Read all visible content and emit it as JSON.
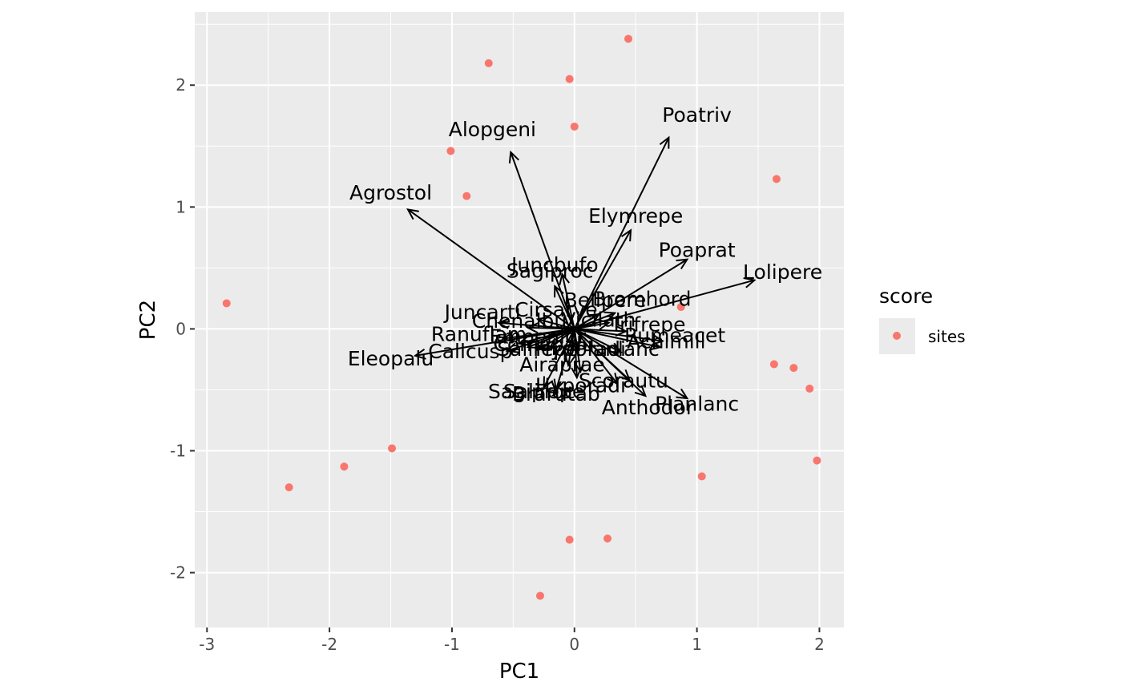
{
  "chart_data": {
    "type": "scatter",
    "subtype": "biplot",
    "xlabel": "PC1",
    "ylabel": "PC2",
    "xlim": [
      -3.1,
      2.2
    ],
    "ylim": [
      -2.45,
      2.6
    ],
    "x_ticks": [
      -3,
      -2,
      -1,
      0,
      1,
      2
    ],
    "y_ticks": [
      -2,
      -1,
      0,
      1,
      2
    ],
    "x_tick_labels": [
      "-3",
      "-2",
      "-1",
      "0",
      "1",
      "2"
    ],
    "y_tick_labels": [
      "-2",
      "-1",
      "0",
      "1",
      "2"
    ],
    "grid": true,
    "panel_background": "#EBEBEB",
    "point_color": "#F8766D",
    "arrow_color": "#000000",
    "legend": {
      "title": "score",
      "placement": "right",
      "entries": [
        {
          "label": "sites",
          "color": "#F8766D"
        }
      ]
    },
    "series": [
      {
        "name": "sites",
        "points": [
          {
            "x": 0.44,
            "y": 2.38
          },
          {
            "x": -0.7,
            "y": 2.18
          },
          {
            "x": -0.04,
            "y": 2.05
          },
          {
            "x": 0.0,
            "y": 1.66
          },
          {
            "x": -1.01,
            "y": 1.46
          },
          {
            "x": -0.88,
            "y": 1.09
          },
          {
            "x": 1.65,
            "y": 1.23
          },
          {
            "x": 0.87,
            "y": 0.18
          },
          {
            "x": -2.84,
            "y": 0.21
          },
          {
            "x": 1.63,
            "y": -0.29
          },
          {
            "x": 1.79,
            "y": -0.32
          },
          {
            "x": 1.92,
            "y": -0.49
          },
          {
            "x": 1.98,
            "y": -1.08
          },
          {
            "x": 1.04,
            "y": -1.21
          },
          {
            "x": -1.49,
            "y": -0.98
          },
          {
            "x": -1.88,
            "y": -1.13
          },
          {
            "x": -2.33,
            "y": -1.3
          },
          {
            "x": 0.27,
            "y": -1.72
          },
          {
            "x": -0.04,
            "y": -1.73
          },
          {
            "x": -0.28,
            "y": -2.19
          }
        ]
      }
    ],
    "loadings": [
      {
        "name": "Poatriv",
        "x": 0.77,
        "y": 1.57
      },
      {
        "name": "Alopgeni",
        "x": -0.52,
        "y": 1.45
      },
      {
        "name": "Agrostol",
        "x": -1.36,
        "y": 0.98
      },
      {
        "name": "Elymrepe",
        "x": 0.46,
        "y": 0.81
      },
      {
        "name": "Poaprat",
        "x": 0.92,
        "y": 0.57
      },
      {
        "name": "Lolipere",
        "x": 1.47,
        "y": 0.4
      },
      {
        "name": "Sagiproc",
        "x": -0.16,
        "y": 0.35
      },
      {
        "name": "Juncbufo",
        "x": -0.1,
        "y": 0.45
      },
      {
        "name": "Bellpere",
        "x": 0.2,
        "y": 0.12
      },
      {
        "name": "Bromhord",
        "x": 0.33,
        "y": 0.13
      },
      {
        "name": "Juncarti",
        "x": -0.62,
        "y": 0.05
      },
      {
        "name": "Cirsarve",
        "x": -0.3,
        "y": 0.08
      },
      {
        "name": "Chenalbu",
        "x": -0.38,
        "y": 0.01
      },
      {
        "name": "Vicilath",
        "x": 0.28,
        "y": 0.05
      },
      {
        "name": "Trifrepe",
        "x": 0.42,
        "y": -0.02
      },
      {
        "name": "Ranuflam",
        "x": -0.58,
        "y": -0.08
      },
      {
        "name": "Empenigr",
        "x": -0.45,
        "y": -0.12
      },
      {
        "name": "Comapalu",
        "x": -0.38,
        "y": -0.15
      },
      {
        "name": "Rumeacet",
        "x": 0.72,
        "y": -0.1
      },
      {
        "name": "Achimill",
        "x": 0.7,
        "y": -0.15
      },
      {
        "name": "Eleopalu",
        "x": -1.3,
        "y": -0.22
      },
      {
        "name": "Callcusp",
        "x": -0.55,
        "y": -0.18
      },
      {
        "name": "Salirepe",
        "x": -0.3,
        "y": -0.17
      },
      {
        "name": "Hyporadi",
        "x": -0.2,
        "y": -0.16
      },
      {
        "name": "Planlanc",
        "x": 0.38,
        "y": -0.19
      },
      {
        "name": "Airaprae",
        "x": -0.05,
        "y": -0.3
      },
      {
        "name": "Anthodor",
        "x": 0.35,
        "y": -0.45
      },
      {
        "name": "Scorautu",
        "x": 0.45,
        "y": -0.42
      },
      {
        "name": "Sagiproc2",
        "x": 0.05,
        "y": -0.35
      },
      {
        "name": "Hyporadi2",
        "x": 0.02,
        "y": -0.4
      },
      {
        "name": "Salirepe2",
        "x": -0.25,
        "y": -0.48
      },
      {
        "name": "Brarutab",
        "x": -0.15,
        "y": -0.5
      },
      {
        "name": "Anthodor2",
        "x": 0.58,
        "y": -0.55
      },
      {
        "name": "Planlanc2",
        "x": 0.92,
        "y": -0.57
      }
    ],
    "loading_labels": [
      {
        "text": "Poatriv",
        "x": 1.0,
        "y": 1.7,
        "anchor": "middle"
      },
      {
        "text": "Alopgeni",
        "x": -0.67,
        "y": 1.58,
        "anchor": "middle"
      },
      {
        "text": "Agrostol",
        "x": -1.5,
        "y": 1.06,
        "anchor": "middle"
      },
      {
        "text": "Elymrepe",
        "x": 0.5,
        "y": 0.87,
        "anchor": "middle"
      },
      {
        "text": "Poaprat",
        "x": 1.0,
        "y": 0.59,
        "anchor": "middle"
      },
      {
        "text": "Lolipere",
        "x": 1.7,
        "y": 0.41,
        "anchor": "middle"
      },
      {
        "text": "Juncbufo",
        "x": -0.16,
        "y": 0.47,
        "anchor": "middle"
      },
      {
        "text": "Sagiproc",
        "x": -0.2,
        "y": 0.42,
        "anchor": "middle"
      },
      {
        "text": "Bromhord",
        "x": 0.55,
        "y": 0.19,
        "anchor": "middle"
      },
      {
        "text": "Bellpere",
        "x": 0.25,
        "y": 0.18,
        "anchor": "middle"
      },
      {
        "text": "Juncarti",
        "x": -0.75,
        "y": 0.08,
        "anchor": "middle"
      },
      {
        "text": "Cirsarve",
        "x": -0.15,
        "y": 0.1,
        "anchor": "middle"
      },
      {
        "text": "Chenalbu",
        "x": -0.45,
        "y": 0.01,
        "anchor": "middle"
      },
      {
        "text": "Trifrepe",
        "x": 0.6,
        "y": -0.02,
        "anchor": "middle"
      },
      {
        "text": "Vicilath",
        "x": 0.2,
        "y": 0.02,
        "anchor": "middle"
      },
      {
        "text": "Ranuflam",
        "x": -0.78,
        "y": -0.1,
        "anchor": "middle"
      },
      {
        "text": "Rumeacet",
        "x": 0.82,
        "y": -0.11,
        "anchor": "middle"
      },
      {
        "text": "Achimill",
        "x": 0.75,
        "y": -0.16,
        "anchor": "middle"
      },
      {
        "text": "Empenigr",
        "x": -0.3,
        "y": -0.12,
        "anchor": "middle"
      },
      {
        "text": "Comapalu",
        "x": -0.25,
        "y": -0.18,
        "anchor": "middle"
      },
      {
        "text": "Eleopalu",
        "x": -1.5,
        "y": -0.3,
        "anchor": "middle"
      },
      {
        "text": "Callcusp",
        "x": -0.85,
        "y": -0.24,
        "anchor": "middle"
      },
      {
        "text": "Salirepe",
        "x": -0.3,
        "y": -0.22,
        "anchor": "middle"
      },
      {
        "text": "Hyporadi",
        "x": 0.05,
        "y": -0.22,
        "anchor": "middle"
      },
      {
        "text": "Planlanc",
        "x": 0.35,
        "y": -0.22,
        "anchor": "middle"
      },
      {
        "text": "Airaprae",
        "x": -0.1,
        "y": -0.35,
        "anchor": "middle"
      },
      {
        "text": "Scorautu",
        "x": 0.4,
        "y": -0.48,
        "anchor": "middle"
      },
      {
        "text": "Hyporadi",
        "x": 0.05,
        "y": -0.52,
        "anchor": "middle"
      },
      {
        "text": "Sagiproc",
        "x": -0.35,
        "y": -0.57,
        "anchor": "middle"
      },
      {
        "text": "Salirepe",
        "x": -0.25,
        "y": -0.57,
        "anchor": "middle"
      },
      {
        "text": "Brarutab",
        "x": -0.15,
        "y": -0.59,
        "anchor": "middle"
      },
      {
        "text": "Planlanc",
        "x": 1.0,
        "y": -0.67,
        "anchor": "middle"
      },
      {
        "text": "Anthodor",
        "x": 0.6,
        "y": -0.7,
        "anchor": "middle"
      }
    ]
  }
}
